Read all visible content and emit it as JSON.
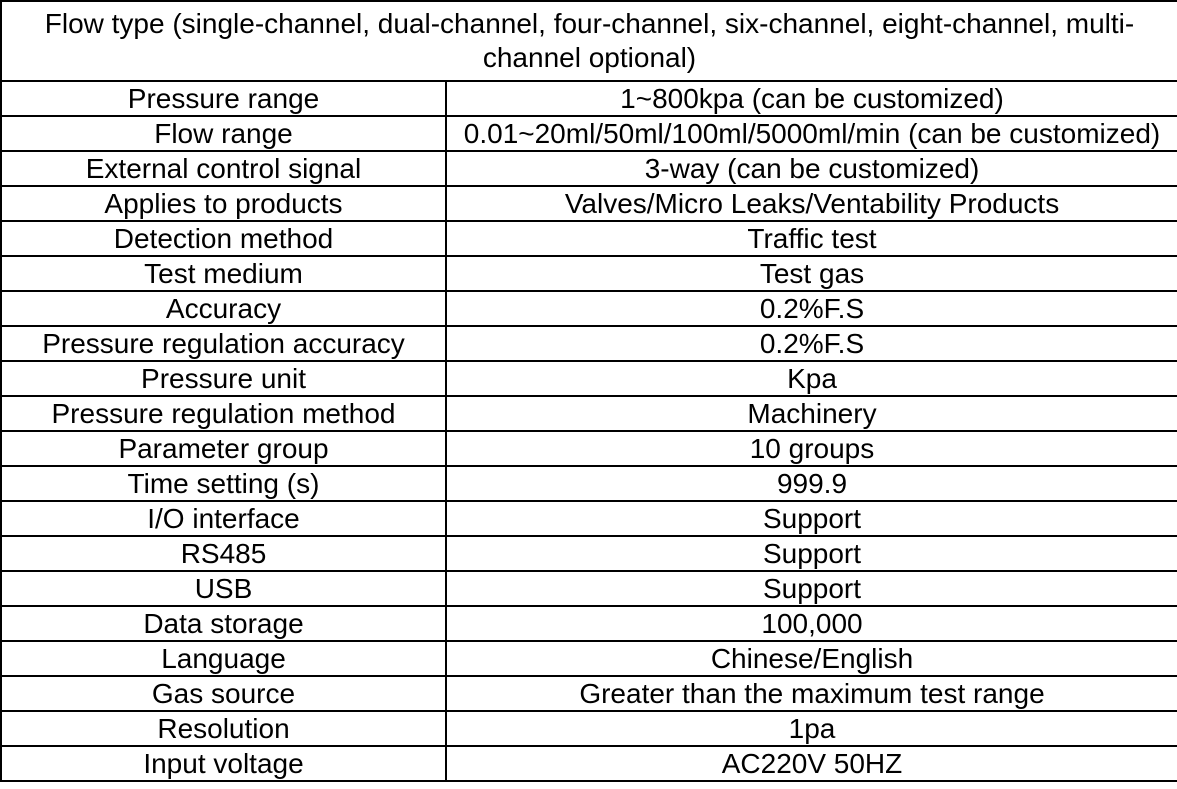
{
  "table": {
    "header": "Flow type (single-channel, dual-channel, four-channel, six-channel, eight-channel, multi-channel optional)",
    "rows": [
      {
        "label": "Pressure range",
        "value": "1~800kpa (can be customized)"
      },
      {
        "label": "Flow range",
        "value": "0.01~20ml/50ml/100ml/5000ml/min (can be customized)"
      },
      {
        "label": "External control signal",
        "value": "3-way (can be customized)"
      },
      {
        "label": "Applies to products",
        "value": "Valves/Micro Leaks/Ventability Products"
      },
      {
        "label": "Detection method",
        "value": "Traffic test"
      },
      {
        "label": "Test medium",
        "value": "Test gas"
      },
      {
        "label": "Accuracy",
        "value": "0.2%F.S"
      },
      {
        "label": "Pressure regulation accuracy",
        "value": "0.2%F.S"
      },
      {
        "label": "Pressure unit",
        "value": "Kpa"
      },
      {
        "label": "Pressure regulation method",
        "value": "Machinery"
      },
      {
        "label": "Parameter group",
        "value": "10 groups"
      },
      {
        "label": "Time setting (s)",
        "value": "999.9"
      },
      {
        "label": "I/O interface",
        "value": "Support"
      },
      {
        "label": "RS485",
        "value": "Support"
      },
      {
        "label": "USB",
        "value": "Support"
      },
      {
        "label": "Data storage",
        "value": "100,000"
      },
      {
        "label": "Language",
        "value": "Chinese/English"
      },
      {
        "label": "Gas source",
        "value": "Greater than the maximum test range"
      },
      {
        "label": "Resolution",
        "value": "1pa"
      },
      {
        "label": "Input voltage",
        "value": "AC220V 50HZ"
      }
    ],
    "colors": {
      "border": "#000000",
      "text": "#000000",
      "background": "#ffffff"
    }
  }
}
